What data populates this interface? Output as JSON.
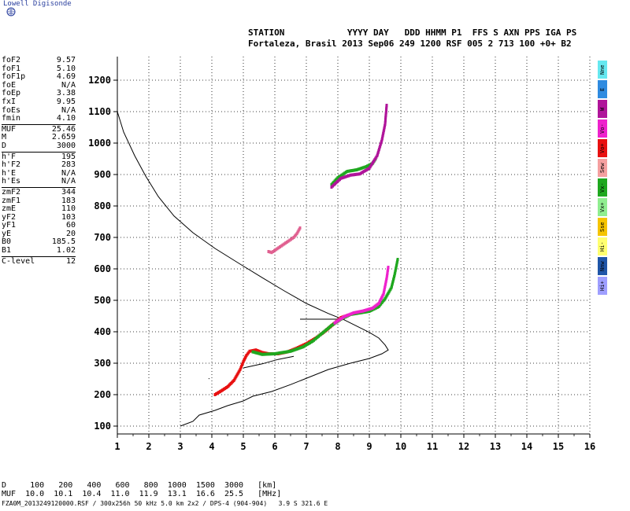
{
  "header": {
    "brand": "Lowell Digisonde",
    "line1": "STATION            YYYY DAY   DDD HHMM P1  FFS S AXN PPS IGA PS",
    "line2": "Fortaleza, Brasil 2013 Sep06 249 1200 RSF 005 2 713 100 +0+ B2"
  },
  "params": {
    "group1": [
      {
        "name": "foF2",
        "value": "9.57"
      },
      {
        "name": "foF1",
        "value": "5.10"
      },
      {
        "name": "foF1p",
        "value": "4.69"
      },
      {
        "name": "foE",
        "value": "N/A"
      },
      {
        "name": "foEp",
        "value": "3.38"
      },
      {
        "name": "fxI",
        "value": "9.95"
      },
      {
        "name": "foEs",
        "value": "N/A"
      },
      {
        "name": "fmin",
        "value": "4.10"
      }
    ],
    "group2": [
      {
        "name": "MUF",
        "value": "25.46"
      },
      {
        "name": "M",
        "value": "2.659"
      },
      {
        "name": "D",
        "value": "3000"
      }
    ],
    "group3": [
      {
        "name": "h'F",
        "value": "195"
      },
      {
        "name": "h'F2",
        "value": "283"
      },
      {
        "name": "h'E",
        "value": "N/A"
      },
      {
        "name": "h'Es",
        "value": "N/A"
      }
    ],
    "group4": [
      {
        "name": "zmF2",
        "value": "344"
      },
      {
        "name": "zmF1",
        "value": "183"
      },
      {
        "name": "zmE",
        "value": "110"
      },
      {
        "name": "yF2",
        "value": "103"
      },
      {
        "name": "yF1",
        "value": "60"
      },
      {
        "name": "yE",
        "value": "20"
      },
      {
        "name": "B0",
        "value": "185.5"
      },
      {
        "name": "B1",
        "value": "1.02"
      }
    ],
    "group5": [
      {
        "name": "C-level",
        "value": "12"
      }
    ]
  },
  "bottom_table": {
    "row1": "D     100   200   400   600   800  1000  1500  3000   [km]",
    "row2": "MUF  10.0  10.1  10.4  11.0  11.9  13.1  16.6  25.5   [MHz]"
  },
  "footer": "FZA0M_2013249120000.RSF / 300x256h 50 kHz 5.0 km 2x2 / DPS-4 (904-904)   3.9 S 321.6 E",
  "legend": [
    {
      "label": "Nne",
      "color": "#66e8f0"
    },
    {
      "label": "E",
      "color": "#2f8be0"
    },
    {
      "label": "W",
      "color": "#b0149a"
    },
    {
      "label": "Vo-",
      "color": "#ee22cc"
    },
    {
      "label": "Vo+",
      "color": "#e81010"
    },
    {
      "label": "Sew",
      "color": "#f5a0a0"
    },
    {
      "label": "Vx-",
      "color": "#1fa81f"
    },
    {
      "label": "Vx+",
      "color": "#90ee90"
    },
    {
      "label": "Sse",
      "color": "#f5c400"
    },
    {
      "label": "Hi-",
      "color": "#ffff70"
    },
    {
      "label": "Nnw",
      "color": "#1f55a8"
    },
    {
      "label": "Hi+",
      "color": "#9f9fff"
    }
  ],
  "chart_data": {
    "type": "scatter",
    "xlim": [
      1,
      16
    ],
    "ylim": [
      75,
      1275
    ],
    "x_ticks": [
      1,
      2,
      3,
      4,
      5,
      6,
      7,
      8,
      9,
      10,
      11,
      12,
      13,
      14,
      15,
      16
    ],
    "y_ticks": [
      100,
      200,
      300,
      400,
      500,
      600,
      700,
      800,
      900,
      1000,
      1100,
      1200
    ],
    "grid": true,
    "series": [
      {
        "color": "#e81010",
        "points": [
          [
            4.1,
            200
          ],
          [
            4.3,
            212
          ],
          [
            4.5,
            225
          ],
          [
            4.7,
            245
          ],
          [
            4.9,
            280
          ],
          [
            5.0,
            305
          ],
          [
            5.1,
            325
          ],
          [
            5.2,
            338
          ],
          [
            5.4,
            342
          ],
          [
            5.6,
            334
          ],
          [
            5.8,
            330
          ],
          [
            6.1,
            330
          ],
          [
            6.4,
            336
          ],
          [
            6.7,
            348
          ],
          [
            7.0,
            362
          ],
          [
            7.3,
            380
          ],
          [
            7.6,
            402
          ],
          [
            7.9,
            428
          ],
          [
            8.1,
            445
          ],
          [
            8.3,
            452
          ]
        ]
      },
      {
        "color": "#1fa81f",
        "points": [
          [
            5.3,
            336
          ],
          [
            5.6,
            328
          ],
          [
            6.0,
            330
          ],
          [
            6.5,
            338
          ],
          [
            6.9,
            352
          ],
          [
            7.2,
            370
          ],
          [
            7.5,
            395
          ],
          [
            7.8,
            420
          ],
          [
            8.1,
            440
          ],
          [
            8.4,
            455
          ],
          [
            8.7,
            460
          ],
          [
            9.0,
            465
          ],
          [
            9.3,
            480
          ],
          [
            9.5,
            505
          ],
          [
            9.7,
            540
          ],
          [
            9.8,
            580
          ],
          [
            9.9,
            630
          ]
        ]
      },
      {
        "color": "#ee22cc",
        "points": [
          [
            7.9,
            428
          ],
          [
            8.2,
            448
          ],
          [
            8.5,
            460
          ],
          [
            8.8,
            466
          ],
          [
            9.1,
            475
          ],
          [
            9.3,
            490
          ],
          [
            9.45,
            520
          ],
          [
            9.55,
            570
          ],
          [
            9.6,
            605
          ]
        ]
      },
      {
        "color": "#1fa81f",
        "points": [
          [
            7.8,
            868
          ],
          [
            8.0,
            890
          ],
          [
            8.3,
            910
          ],
          [
            8.6,
            915
          ],
          [
            8.9,
            925
          ],
          [
            9.1,
            935
          ],
          [
            9.2,
            950
          ]
        ]
      },
      {
        "color": "#b0149a",
        "points": [
          [
            7.8,
            860
          ],
          [
            8.1,
            888
          ],
          [
            8.4,
            898
          ],
          [
            8.7,
            902
          ],
          [
            9.0,
            920
          ],
          [
            9.25,
            960
          ],
          [
            9.4,
            1010
          ],
          [
            9.5,
            1060
          ],
          [
            9.55,
            1120
          ]
        ]
      },
      {
        "color": "#e06090",
        "points": [
          [
            5.8,
            655
          ],
          [
            5.9,
            652
          ],
          [
            6.6,
            700
          ],
          [
            6.7,
            712
          ],
          [
            6.8,
            730
          ]
        ]
      }
    ],
    "profile": [
      [
        3.0,
        100
      ],
      [
        3.4,
        115
      ],
      [
        3.6,
        135
      ],
      [
        4.1,
        150
      ],
      [
        4.5,
        165
      ],
      [
        5.0,
        180
      ],
      [
        5.3,
        195
      ],
      [
        5.9,
        210
      ],
      [
        6.5,
        232
      ],
      [
        7.1,
        256
      ],
      [
        7.7,
        280
      ],
      [
        8.4,
        300
      ],
      [
        9.0,
        315
      ],
      [
        9.4,
        330
      ],
      [
        9.6,
        342
      ],
      [
        9.5,
        358
      ],
      [
        9.3,
        380
      ],
      [
        9.0,
        398
      ],
      [
        8.6,
        418
      ],
      [
        8.2,
        438
      ],
      [
        7.7,
        458
      ],
      [
        7.0,
        490
      ],
      [
        6.3,
        530
      ],
      [
        5.6,
        572
      ],
      [
        4.9,
        615
      ],
      [
        4.1,
        665
      ],
      [
        3.4,
        715
      ],
      [
        2.8,
        768
      ],
      [
        2.3,
        830
      ],
      [
        1.9,
        895
      ],
      [
        1.55,
        960
      ],
      [
        1.2,
        1035
      ],
      [
        1.0,
        1100
      ]
    ],
    "traces": [
      [
        [
          6.8,
          440
        ],
        [
          8.2,
          440
        ]
      ],
      [
        [
          5.0,
          285
        ],
        [
          5.6,
          298
        ],
        [
          6.1,
          312
        ],
        [
          6.6,
          322
        ]
      ],
      [
        [
          3.9,
          250
        ],
        [
          3.92,
          252
        ]
      ]
    ]
  }
}
